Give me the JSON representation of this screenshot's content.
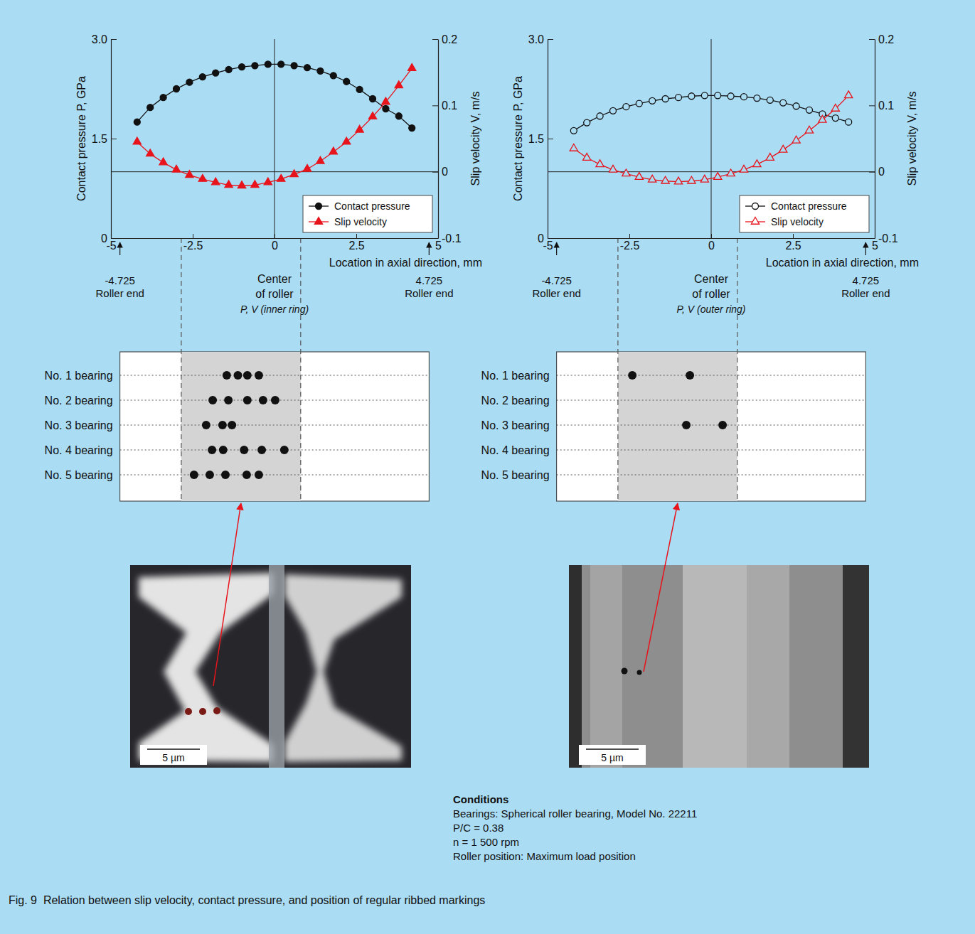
{
  "chart_data": [
    {
      "type": "line",
      "xlabel": "Location in axial direction, mm",
      "ylabel": "Contact pressure P, GPa",
      "y2label": "Slip velocity V, m/s",
      "xlim": [
        -5,
        5
      ],
      "xticks": [
        -5,
        -2.5,
        0,
        2.5,
        5
      ],
      "ylim": [
        0,
        3
      ],
      "yticks": [
        0,
        1.5,
        {
          "value": 3,
          "label": "3.0"
        }
      ],
      "y2lim": [
        -0.1,
        0.2
      ],
      "y2ticks": [
        -0.1,
        0,
        0.1,
        0.2
      ],
      "legend": "lower right",
      "x": [
        -4.2,
        -3.8,
        -3.4,
        -3.0,
        -2.6,
        -2.2,
        -1.8,
        -1.4,
        -1.0,
        -0.6,
        -0.2,
        0.2,
        0.6,
        1.0,
        1.4,
        1.8,
        2.2,
        2.6,
        3.0,
        3.4,
        3.8,
        4.2
      ],
      "series": [
        {
          "name": "Contact pressure",
          "color": "#111111",
          "marker": "circle",
          "axis": "y",
          "values": [
            1.75,
            1.97,
            2.12,
            2.25,
            2.35,
            2.43,
            2.49,
            2.54,
            2.58,
            2.6,
            2.62,
            2.62,
            2.6,
            2.57,
            2.52,
            2.45,
            2.36,
            2.24,
            2.1,
            1.95,
            1.84,
            1.66
          ]
        },
        {
          "name": "Slip velocity",
          "color": "#e8141c",
          "marker": "triangle",
          "axis": "y2",
          "values": [
            0.045,
            0.027,
            0.014,
            0.003,
            -0.005,
            -0.011,
            -0.016,
            -0.02,
            -0.021,
            -0.02,
            -0.016,
            -0.011,
            -0.004,
            0.004,
            0.016,
            0.03,
            0.045,
            0.063,
            0.083,
            0.105,
            0.13,
            0.156
          ]
        }
      ],
      "reference_lines_y2": [
        0
      ],
      "dashed_lines_x": [
        -2.85,
        0.8
      ],
      "center": {
        "x": 0,
        "lines": [
          "Center",
          "of roller",
          "P, V (inner ring)"
        ]
      },
      "roller_ends": [
        {
          "x": -4.725,
          "lines": [
            "-4.725",
            "Roller end"
          ]
        },
        {
          "x": 4.725,
          "lines": [
            "4.725",
            "Roller end"
          ]
        }
      ],
      "markings": {
        "rows": [
          {
            "label": "No. 1 bearing",
            "positions": [
              -1.46,
              -1.12,
              -0.83,
              -0.48
            ]
          },
          {
            "label": "No. 2 bearing",
            "positions": [
              -1.89,
              -1.41,
              -0.83,
              -0.35,
              0.02
            ]
          },
          {
            "label": "No. 3 bearing",
            "positions": [
              -2.09,
              -1.59,
              -1.3
            ]
          },
          {
            "label": "No. 4 bearing",
            "positions": [
              -1.91,
              -1.57,
              -0.93,
              -0.39,
              0.3
            ]
          },
          {
            "label": "No. 5 bearing",
            "positions": [
              -2.46,
              -1.98,
              -1.5,
              -0.85,
              -0.48
            ]
          }
        ]
      }
    },
    {
      "type": "line",
      "xlabel": "Location in axial direction, mm",
      "ylabel": "Contact pressure P, GPa",
      "y2label": "Slip velocity V, m/s",
      "xlim": [
        -5,
        5
      ],
      "xticks": [
        -5,
        -2.5,
        0,
        2.5,
        5
      ],
      "ylim": [
        0,
        3
      ],
      "yticks": [
        0,
        1.5,
        {
          "value": 3,
          "label": "3.0"
        }
      ],
      "y2lim": [
        -0.1,
        0.2
      ],
      "y2ticks": [
        -0.1,
        0,
        0.1,
        0.2
      ],
      "legend": "lower right",
      "x": [
        -4.2,
        -3.8,
        -3.4,
        -3.0,
        -2.6,
        -2.2,
        -1.8,
        -1.4,
        -1.0,
        -0.6,
        -0.2,
        0.2,
        0.6,
        1.0,
        1.4,
        1.8,
        2.2,
        2.6,
        3.0,
        3.4,
        3.8,
        4.2
      ],
      "series": [
        {
          "name": "Contact pressure",
          "color": "#111111",
          "marker": "open-circle",
          "axis": "y",
          "values": [
            1.62,
            1.74,
            1.84,
            1.92,
            1.98,
            2.03,
            2.07,
            2.1,
            2.12,
            2.14,
            2.15,
            2.15,
            2.14,
            2.13,
            2.11,
            2.08,
            2.04,
            1.99,
            1.93,
            1.87,
            1.81,
            1.75
          ]
        },
        {
          "name": "Slip velocity",
          "color": "#e8141c",
          "marker": "open-triangle",
          "axis": "y2",
          "values": [
            0.035,
            0.021,
            0.011,
            0.003,
            -0.003,
            -0.008,
            -0.012,
            -0.014,
            -0.015,
            -0.014,
            -0.012,
            -0.008,
            -0.003,
            0.003,
            0.011,
            0.021,
            0.033,
            0.047,
            0.062,
            0.078,
            0.095,
            0.115
          ]
        }
      ],
      "reference_lines_y2": [
        0
      ],
      "dashed_lines_x": [
        -2.85,
        0.8
      ],
      "center": {
        "x": 0,
        "lines": [
          "Center",
          "of roller",
          "P, V (outer ring)"
        ]
      },
      "roller_ends": [
        {
          "x": -4.725,
          "lines": [
            "-4.725",
            "Roller end"
          ]
        },
        {
          "x": 4.725,
          "lines": [
            "4.725",
            "Roller end"
          ]
        }
      ],
      "markings": {
        "rows": [
          {
            "label": "No. 1 bearing",
            "positions": [
              -2.41,
              -0.65
            ]
          },
          {
            "label": "No. 2 bearing",
            "positions": []
          },
          {
            "label": "No. 3 bearing",
            "positions": [
              -0.76,
              0.35
            ]
          },
          {
            "label": "No. 4 bearing",
            "positions": []
          },
          {
            "label": "No. 5 bearing",
            "positions": []
          }
        ]
      }
    }
  ],
  "photos": [
    {
      "scale_bar": "5 µm"
    },
    {
      "scale_bar": "5 µm"
    }
  ],
  "conditions": {
    "title": "Conditions",
    "lines": [
      "Bearings: Spherical roller bearing, Model No. 22211",
      "P/C = 0.38",
      "n = 1 500 rpm",
      "Roller position: Maximum load position"
    ]
  },
  "caption": "Fig. 9  Relation between slip velocity, contact pressure, and position of regular ribbed markings"
}
